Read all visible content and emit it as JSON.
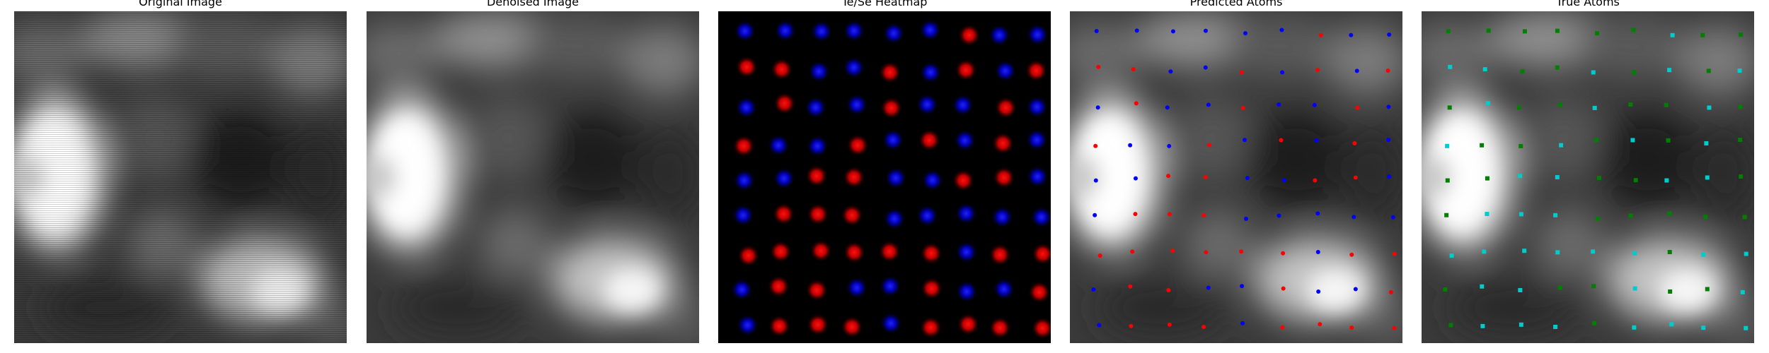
{
  "figure": {
    "panels": [
      {
        "id": "original",
        "title": "Original Image"
      },
      {
        "id": "denoised",
        "title": "Denoised Image"
      },
      {
        "id": "heatmap",
        "title": "Te/Se Heatmap"
      },
      {
        "id": "predicted",
        "title": "Predicted Atoms"
      },
      {
        "id": "true",
        "title": "True Atoms"
      }
    ]
  },
  "colors": {
    "te": "#ff0000",
    "se": "#0000ff",
    "true_te": "#00cccc",
    "true_se": "#008000",
    "background_dark": "#000000"
  }
}
